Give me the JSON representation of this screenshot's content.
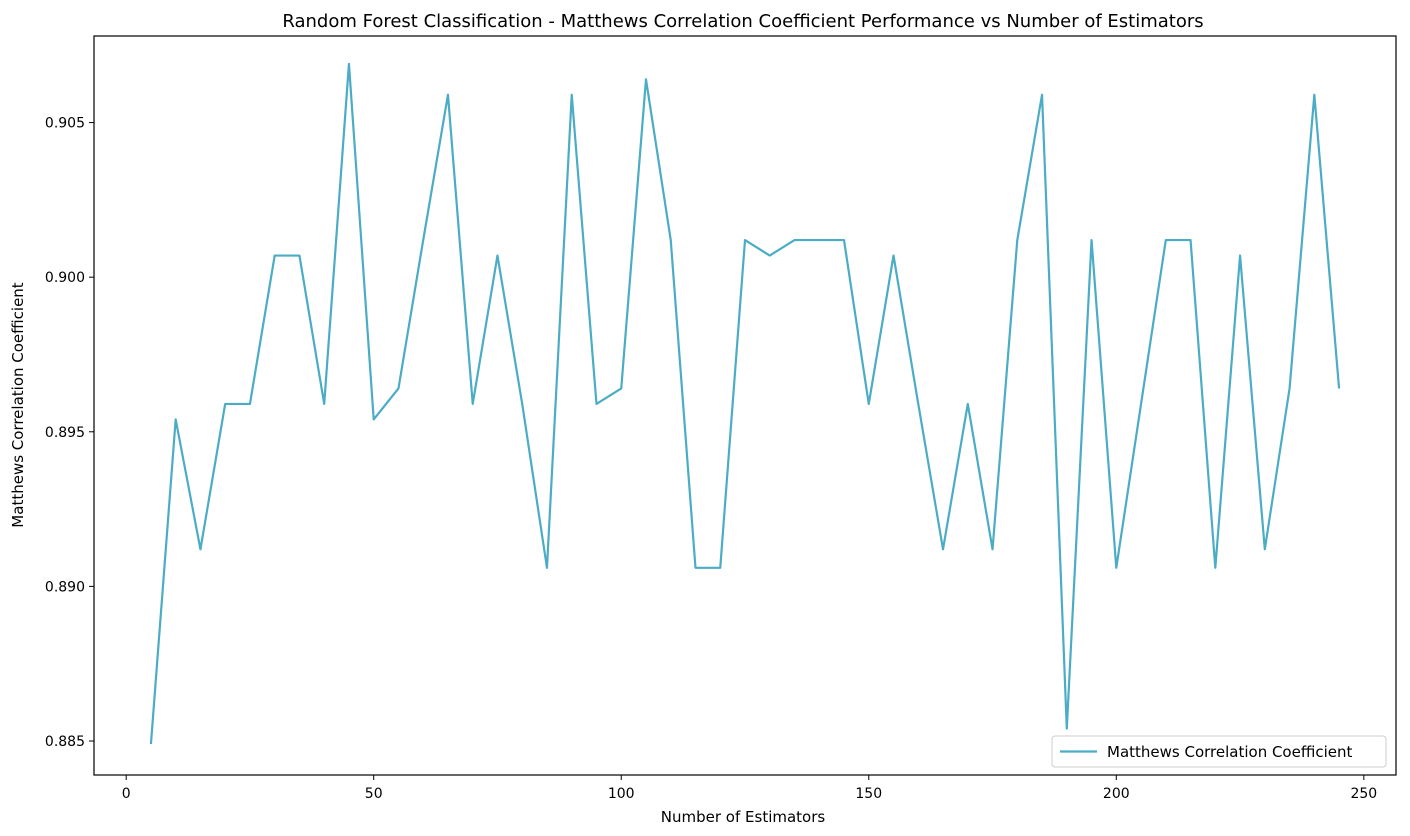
{
  "chart_data": {
    "type": "line",
    "title": "Random Forest Classification - Matthews Correlation Coefficient Performance vs Number of Estimators",
    "xlabel": "Number of Estimators",
    "ylabel": "Matthews Correlation Coefficient",
    "xlim": [
      -6.5,
      256.5
    ],
    "ylim": [
      0.8839,
      0.9078
    ],
    "xticks": [
      0,
      50,
      100,
      150,
      200,
      250
    ],
    "xtick_labels": [
      "0",
      "50",
      "100",
      "150",
      "200",
      "250"
    ],
    "yticks": [
      0.885,
      0.89,
      0.895,
      0.9,
      0.905
    ],
    "ytick_labels": [
      "0.885",
      "0.890",
      "0.895",
      "0.900",
      "0.905"
    ],
    "grid": false,
    "legend": "lower-right",
    "series": [
      {
        "name": "Matthews Correlation Coefficient",
        "color": "#4BACC6",
        "x": [
          5,
          10,
          15,
          20,
          25,
          30,
          35,
          40,
          45,
          50,
          55,
          60,
          65,
          70,
          75,
          80,
          85,
          90,
          95,
          100,
          105,
          110,
          115,
          120,
          125,
          130,
          135,
          140,
          145,
          150,
          155,
          160,
          165,
          170,
          175,
          180,
          185,
          190,
          195,
          200,
          205,
          210,
          215,
          220,
          225,
          230,
          235,
          240,
          245
        ],
        "y": [
          0.8849,
          0.8954,
          0.8912,
          0.8959,
          0.8959,
          0.9007,
          0.9007,
          0.8959,
          0.9069,
          0.8954,
          0.8964,
          0.9012,
          0.9059,
          0.8959,
          0.9007,
          0.8959,
          0.8906,
          0.9059,
          0.8959,
          0.8964,
          0.9064,
          0.9012,
          0.8906,
          0.8906,
          0.9012,
          0.9007,
          0.9012,
          0.9012,
          0.9012,
          0.8959,
          0.9007,
          0.8959,
          0.8912,
          0.8959,
          0.8912,
          0.9012,
          0.9059,
          0.8854,
          0.9012,
          0.8906,
          0.8959,
          0.9012,
          0.9012,
          0.8906,
          0.9007,
          0.8912,
          0.8964,
          0.9059,
          0.8964
        ]
      }
    ]
  }
}
